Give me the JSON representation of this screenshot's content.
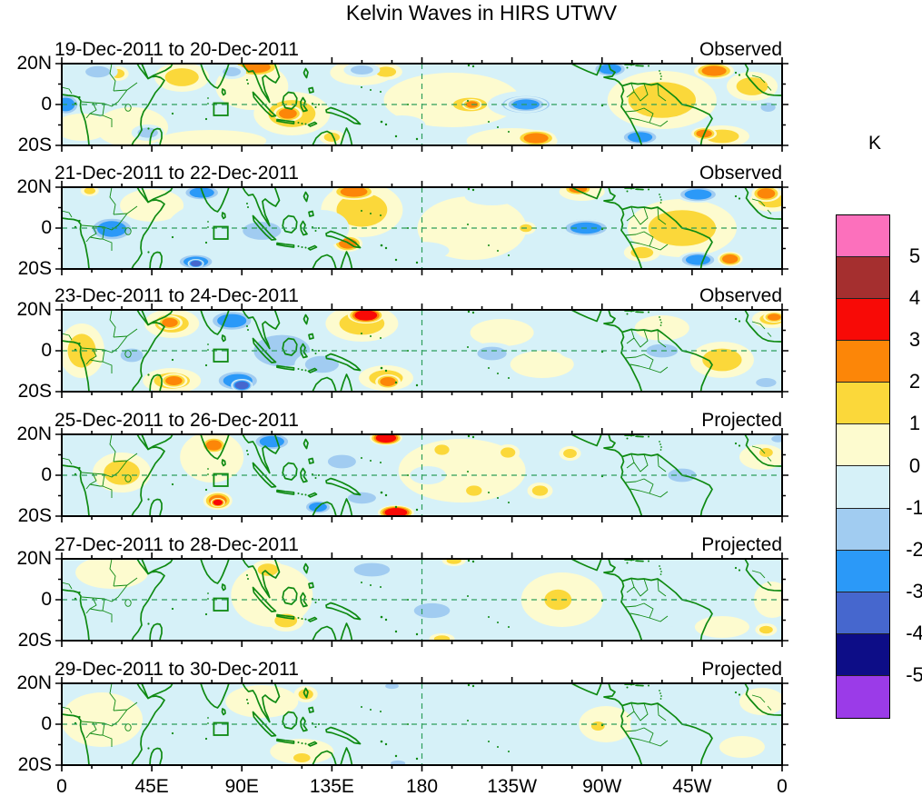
{
  "title": "Kelvin Waves in HIRS UTWV",
  "colorbar": {
    "unit": "K",
    "tick_labels": [
      "5",
      "4",
      "3",
      "2",
      "1",
      "0",
      "-1",
      "-2",
      "-3",
      "-4",
      "-5"
    ],
    "colors_top_to_bottom": [
      "#FC70BC",
      "#A52F2F",
      "#F80A06",
      "#FC8608",
      "#FBD83A",
      "#FDFBCF",
      "#D6F1F8",
      "#A1CCF1",
      "#2B99F8",
      "#4667CE",
      "#0D0D87",
      "#9B3BE8"
    ]
  },
  "x_axis": {
    "tick_labels": [
      "0",
      "45E",
      "90E",
      "135E",
      "180",
      "135W",
      "90W",
      "45W",
      "0"
    ]
  },
  "y_axis": {
    "tick_labels": [
      "20N",
      "0",
      "20S"
    ]
  },
  "chart_data": {
    "type": "heatmap",
    "subtype": "filled_contour_lon_lat_panels",
    "title": "Kelvin Waves in HIRS UTWV",
    "lat_range_deg": [
      -20,
      20
    ],
    "lon_range_deg": [
      0,
      360
    ],
    "lon_tick_deg": [
      0,
      45,
      90,
      135,
      180,
      225,
      270,
      315,
      360
    ],
    "contour_levels_K": [
      -5,
      -4,
      -3,
      -2,
      -1,
      0,
      1,
      2,
      3,
      4,
      5
    ],
    "palette_positive": [
      "#FDFBCF",
      "#FBD83A",
      "#FC8608",
      "#F80A06",
      "#A52F2F",
      "#FC70BC"
    ],
    "palette_negative": [
      "#D6F1F8",
      "#A1CCF1",
      "#2B99F8",
      "#4667CE",
      "#0D0D87",
      "#9B3BE8"
    ],
    "map_line_color": "#0E8A12",
    "dash_line_color": "#2E9E5B",
    "equator_dashed_line": true,
    "dateline_dashed_line": true,
    "reference_box_lon_deg": [
      76,
      83
    ],
    "reference_box_lat_deg": [
      -5.5,
      0.5
    ],
    "panels": [
      {
        "date_range": "19-Dec-2011 to 20-Dec-2011",
        "type_label": "Observed",
        "features": [
          [
            35,
            70,
            40,
            22,
            1
          ],
          [
            60,
            15,
            30,
            16,
            2
          ],
          [
            95,
            25,
            40,
            26,
            1
          ],
          [
            115,
            55,
            42,
            24,
            2
          ],
          [
            150,
            10,
            35,
            14,
            1
          ],
          [
            195,
            40,
            75,
            30,
            1
          ],
          [
            225,
            85,
            50,
            14,
            1
          ],
          [
            75,
            85,
            60,
            12,
            1
          ],
          [
            10,
            70,
            30,
            15,
            1
          ],
          [
            300,
            40,
            60,
            32,
            2
          ],
          [
            345,
            25,
            28,
            16,
            2
          ],
          [
            330,
            80,
            30,
            12,
            2
          ],
          [
            28,
            11,
            12,
            8,
            2
          ],
          [
            162,
            9,
            18,
            9,
            2
          ],
          [
            97,
            4,
            26,
            10,
            3
          ],
          [
            113,
            55,
            16,
            9,
            3
          ],
          [
            204,
            45,
            30,
            12,
            2
          ],
          [
            205,
            45,
            11,
            6,
            3
          ],
          [
            237,
            82,
            22,
            9,
            3
          ],
          [
            326,
            8,
            22,
            9,
            3
          ],
          [
            321,
            77,
            14,
            7,
            3
          ],
          [
            135,
            81,
            14,
            8,
            2
          ],
          [
            170,
            68,
            26,
            11,
            -1
          ],
          [
            255,
            15,
            30,
            12,
            -1
          ],
          [
            260,
            75,
            28,
            10,
            -1
          ],
          [
            2,
            45,
            16,
            12,
            -3
          ],
          [
            18,
            9,
            22,
            10,
            -2
          ],
          [
            43,
            76,
            18,
            9,
            -2
          ],
          [
            85,
            9,
            16,
            8,
            -2
          ],
          [
            150,
            7,
            20,
            8,
            -2
          ],
          [
            232,
            45,
            42,
            15,
            -2
          ],
          [
            232,
            45,
            24,
            9,
            -3
          ],
          [
            274,
            6,
            20,
            9,
            -3
          ],
          [
            289,
            81,
            22,
            9,
            -3
          ],
          [
            353,
            48,
            13,
            8,
            -2
          ]
        ]
      },
      {
        "date_range": "21-Dec-2011 to 22-Dec-2011",
        "type_label": "Observed",
        "features": [
          [
            45,
            20,
            35,
            18,
            1
          ],
          [
            150,
            25,
            45,
            30,
            2
          ],
          [
            205,
            45,
            60,
            35,
            1
          ],
          [
            310,
            45,
            60,
            32,
            2
          ],
          [
            355,
            15,
            25,
            12,
            2
          ],
          [
            260,
            5,
            25,
            10,
            1
          ],
          [
            290,
            72,
            20,
            10,
            2
          ],
          [
            14,
            4,
            10,
            6,
            2
          ],
          [
            146,
            5,
            24,
            9,
            3
          ],
          [
            143,
            62,
            16,
            9,
            3
          ],
          [
            232,
            45,
            11,
            7,
            2
          ],
          [
            258,
            2,
            16,
            7,
            3
          ],
          [
            352,
            7,
            16,
            9,
            3
          ],
          [
            334,
            79,
            14,
            8,
            3
          ],
          [
            80,
            45,
            60,
            30,
            -1
          ],
          [
            130,
            45,
            30,
            20,
            -1
          ],
          [
            180,
            70,
            30,
            10,
            -1
          ],
          [
            215,
            10,
            30,
            10,
            -1
          ],
          [
            25,
            46,
            26,
            14,
            -3
          ],
          [
            70,
            6,
            22,
            9,
            -3
          ],
          [
            67,
            82,
            22,
            9,
            -3
          ],
          [
            67,
            84,
            9,
            5,
            -4
          ],
          [
            100,
            48,
            34,
            16,
            -2
          ],
          [
            262,
            45,
            45,
            16,
            -2
          ],
          [
            262,
            45,
            28,
            10,
            -3
          ],
          [
            318,
            8,
            24,
            9,
            -3
          ],
          [
            318,
            80,
            22,
            9,
            -3
          ]
        ]
      },
      {
        "date_range": "23-Dec-2011 to 24-Dec-2011",
        "type_label": "Observed",
        "features": [
          [
            10,
            45,
            25,
            30,
            2
          ],
          [
            55,
            15,
            30,
            16,
            2
          ],
          [
            55,
            78,
            32,
            14,
            2
          ],
          [
            150,
            15,
            40,
            20,
            2
          ],
          [
            162,
            75,
            30,
            14,
            2
          ],
          [
            220,
            25,
            35,
            15,
            1
          ],
          [
            240,
            60,
            35,
            15,
            1
          ],
          [
            300,
            20,
            30,
            14,
            1
          ],
          [
            330,
            55,
            35,
            20,
            2
          ],
          [
            355,
            10,
            22,
            10,
            2
          ],
          [
            54,
            14,
            14,
            8,
            3
          ],
          [
            56,
            78,
            15,
            8,
            3
          ],
          [
            152,
            6,
            20,
            9,
            4
          ],
          [
            163,
            79,
            14,
            8,
            3
          ],
          [
            356,
            8,
            12,
            6,
            3
          ],
          [
            35,
            50,
            20,
            12,
            -2
          ],
          [
            110,
            45,
            50,
            28,
            -2
          ],
          [
            85,
            12,
            26,
            12,
            -3
          ],
          [
            88,
            78,
            26,
            12,
            -3
          ],
          [
            90,
            83,
            12,
            7,
            -4
          ],
          [
            130,
            60,
            30,
            15,
            -2
          ],
          [
            215,
            48,
            26,
            12,
            -2
          ],
          [
            260,
            45,
            25,
            10,
            -1
          ],
          [
            300,
            45,
            28,
            12,
            -2
          ],
          [
            352,
            80,
            18,
            8,
            -2
          ]
        ]
      },
      {
        "date_range": "25-Dec-2011 to 26-Dec-2011",
        "type_label": "Projected",
        "features": [
          [
            30,
            42,
            32,
            22,
            2
          ],
          [
            75,
            25,
            35,
            28,
            1
          ],
          [
            200,
            40,
            70,
            35,
            1
          ],
          [
            350,
            25,
            25,
            14,
            1
          ],
          [
            76,
            12,
            14,
            9,
            3
          ],
          [
            78,
            73,
            16,
            10,
            3
          ],
          [
            78,
            75,
            8,
            5,
            4
          ],
          [
            162,
            4,
            18,
            8,
            4
          ],
          [
            167,
            86,
            20,
            8,
            4
          ],
          [
            190,
            17,
            13,
            9,
            2
          ],
          [
            206,
            62,
            14,
            9,
            2
          ],
          [
            223,
            20,
            13,
            9,
            2
          ],
          [
            239,
            62,
            14,
            9,
            2
          ],
          [
            254,
            21,
            12,
            8,
            2
          ],
          [
            352,
            20,
            12,
            8,
            2
          ],
          [
            2,
            45,
            20,
            25,
            -1
          ],
          [
            120,
            45,
            40,
            22,
            -1
          ],
          [
            183,
            45,
            20,
            10,
            -1
          ],
          [
            300,
            45,
            55,
            30,
            -1
          ],
          [
            105,
            8,
            22,
            10,
            -3
          ],
          [
            128,
            80,
            16,
            8,
            -3
          ],
          [
            140,
            30,
            25,
            12,
            -2
          ],
          [
            150,
            70,
            25,
            10,
            -2
          ],
          [
            310,
            45,
            25,
            12,
            -2
          ],
          [
            358,
            5,
            12,
            6,
            -2
          ]
        ]
      },
      {
        "date_range": "27-Dec-2011 to 28-Dec-2011",
        "type_label": "Projected",
        "features": [
          [
            25,
            15,
            40,
            18,
            1
          ],
          [
            105,
            40,
            45,
            35,
            1
          ],
          [
            250,
            45,
            45,
            30,
            1
          ],
          [
            330,
            75,
            30,
            12,
            1
          ],
          [
            355,
            45,
            20,
            20,
            1
          ],
          [
            103,
            12,
            18,
            11,
            2
          ],
          [
            112,
            68,
            20,
            12,
            2
          ],
          [
            196,
            2,
            13,
            6,
            2
          ],
          [
            190,
            88,
            14,
            6,
            2
          ],
          [
            248,
            45,
            24,
            18,
            2
          ],
          [
            352,
            78,
            12,
            7,
            2
          ],
          [
            20,
            70,
            40,
            18,
            -1
          ],
          [
            60,
            45,
            30,
            20,
            -1
          ],
          [
            170,
            35,
            50,
            25,
            -1
          ],
          [
            290,
            20,
            40,
            18,
            -1
          ],
          [
            300,
            60,
            35,
            15,
            -1
          ],
          [
            222,
            5,
            20,
            7,
            -1
          ],
          [
            155,
            12,
            32,
            12,
            -2
          ],
          [
            185,
            57,
            32,
            13,
            -2
          ]
        ]
      },
      {
        "date_range": "29-Dec-2011 to 30-Dec-2011",
        "type_label": "Projected",
        "features": [
          [
            20,
            40,
            45,
            30,
            1
          ],
          [
            100,
            20,
            40,
            18,
            1
          ],
          [
            120,
            75,
            35,
            14,
            1
          ],
          [
            272,
            45,
            30,
            20,
            1
          ],
          [
            350,
            20,
            25,
            15,
            1
          ],
          [
            340,
            70,
            25,
            12,
            1
          ],
          [
            122,
            12,
            13,
            9,
            2
          ],
          [
            120,
            82,
            15,
            8,
            2
          ],
          [
            268,
            47,
            12,
            8,
            2
          ],
          [
            60,
            50,
            45,
            25,
            -1
          ],
          [
            140,
            45,
            30,
            15,
            -1
          ],
          [
            160,
            45,
            60,
            30,
            -1
          ],
          [
            220,
            45,
            50,
            28,
            -1
          ],
          [
            300,
            45,
            35,
            20,
            -1
          ],
          [
            165,
            3,
            12,
            5,
            -2
          ],
          [
            168,
            88,
            13,
            5,
            -2
          ]
        ]
      }
    ]
  }
}
